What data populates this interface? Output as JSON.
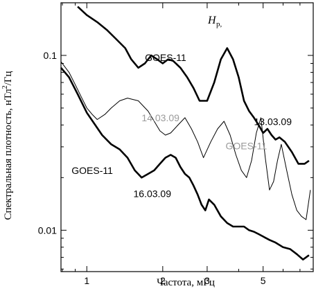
{
  "chart_data": {
    "type": "line",
    "panel_label": "H",
    "panel_label_sub": "p,",
    "xlabel": "Частота, мГц",
    "ylabel_main": "Спектральная плотность, нТл",
    "ylabel_sup": "2",
    "ylabel_tail": "/Гц",
    "x_scale": "log",
    "y_scale": "log",
    "xlim": [
      0.79,
      7.9
    ],
    "ylim": [
      0.0058,
      0.2
    ],
    "x_ticks": [
      {
        "value": 1,
        "label": "1"
      },
      {
        "value": 2,
        "label": "2"
      },
      {
        "value": 3,
        "label": "3"
      },
      {
        "value": 5,
        "label": "5"
      }
    ],
    "y_ticks": [
      {
        "value": 0.01,
        "label": "0.01"
      },
      {
        "value": 0.1,
        "label": "0.1"
      }
    ],
    "annotations": [
      {
        "text": "GOES-11",
        "x": 1.7,
        "y": 0.093,
        "style": "black"
      },
      {
        "text": "13.03.09",
        "x": 4.6,
        "y": 0.04,
        "style": "black"
      },
      {
        "text": "14.03.09",
        "x": 1.65,
        "y": 0.042,
        "style": "grey"
      },
      {
        "text": "GOES-11",
        "x": 3.55,
        "y": 0.029,
        "style": "grey"
      },
      {
        "text": "GOES-11",
        "x": 0.87,
        "y": 0.021,
        "style": "black"
      },
      {
        "text": "16.03.09",
        "x": 1.53,
        "y": 0.0155,
        "style": "black"
      }
    ],
    "series": [
      {
        "name": "13.03.09",
        "stroke": "thick",
        "x": [
          0.92,
          1.0,
          1.1,
          1.2,
          1.3,
          1.42,
          1.5,
          1.6,
          1.7,
          1.8,
          1.9,
          2.0,
          2.1,
          2.2,
          2.35,
          2.5,
          2.65,
          2.8,
          3.0,
          3.2,
          3.4,
          3.6,
          3.8,
          4.0,
          4.2,
          4.4,
          4.6,
          4.8,
          5.0,
          5.2,
          5.4,
          5.6,
          5.8,
          6.1,
          6.5,
          6.9,
          7.3,
          7.6
        ],
        "y": [
          0.19,
          0.17,
          0.155,
          0.14,
          0.125,
          0.11,
          0.095,
          0.085,
          0.09,
          0.1,
          0.095,
          0.09,
          0.095,
          0.093,
          0.085,
          0.075,
          0.065,
          0.055,
          0.055,
          0.07,
          0.095,
          0.11,
          0.095,
          0.075,
          0.055,
          0.048,
          0.044,
          0.04,
          0.036,
          0.038,
          0.035,
          0.033,
          0.034,
          0.032,
          0.028,
          0.024,
          0.024,
          0.025
        ]
      },
      {
        "name": "14.03.09",
        "stroke": "thin",
        "x": [
          0.79,
          0.85,
          0.9,
          0.95,
          1.0,
          1.05,
          1.1,
          1.18,
          1.25,
          1.35,
          1.45,
          1.6,
          1.75,
          1.85,
          1.95,
          2.05,
          2.15,
          2.3,
          2.45,
          2.6,
          2.75,
          2.9,
          3.1,
          3.3,
          3.5,
          3.7,
          3.9,
          4.1,
          4.3,
          4.5,
          4.7,
          4.9,
          5.1,
          5.3,
          5.5,
          5.7,
          5.9,
          6.2,
          6.5,
          6.8,
          7.1,
          7.4,
          7.7
        ],
        "y": [
          0.092,
          0.08,
          0.068,
          0.058,
          0.05,
          0.046,
          0.043,
          0.046,
          0.05,
          0.055,
          0.057,
          0.055,
          0.048,
          0.042,
          0.037,
          0.035,
          0.036,
          0.04,
          0.044,
          0.038,
          0.032,
          0.026,
          0.032,
          0.038,
          0.042,
          0.035,
          0.027,
          0.022,
          0.02,
          0.025,
          0.036,
          0.044,
          0.026,
          0.017,
          0.019,
          0.025,
          0.031,
          0.022,
          0.016,
          0.013,
          0.012,
          0.0115,
          0.017
        ]
      },
      {
        "name": "16.03.09",
        "stroke": "thick",
        "x": [
          0.79,
          0.85,
          0.92,
          1.0,
          1.08,
          1.15,
          1.25,
          1.35,
          1.45,
          1.55,
          1.65,
          1.75,
          1.85,
          1.95,
          2.05,
          2.15,
          2.25,
          2.35,
          2.45,
          2.55,
          2.65,
          2.75,
          2.85,
          2.95,
          3.05,
          3.2,
          3.4,
          3.6,
          3.8,
          4.0,
          4.2,
          4.4,
          4.6,
          4.8,
          5.0,
          5.3,
          5.6,
          6.0,
          6.4,
          6.8,
          7.2,
          7.6
        ],
        "y": [
          0.085,
          0.075,
          0.06,
          0.047,
          0.04,
          0.035,
          0.031,
          0.029,
          0.026,
          0.022,
          0.02,
          0.021,
          0.022,
          0.024,
          0.026,
          0.027,
          0.026,
          0.023,
          0.021,
          0.02,
          0.018,
          0.016,
          0.014,
          0.013,
          0.015,
          0.014,
          0.012,
          0.011,
          0.0105,
          0.0105,
          0.0105,
          0.01,
          0.0098,
          0.0095,
          0.0092,
          0.0088,
          0.0085,
          0.008,
          0.0078,
          0.0073,
          0.0068,
          0.0072
        ]
      }
    ]
  }
}
